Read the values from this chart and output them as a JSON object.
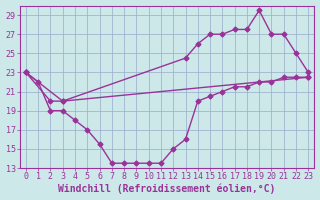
{
  "xlabel": "Windchill (Refroidissement éolien,°C)",
  "background_color": "#cce8e8",
  "line_color": "#993399",
  "grid_color": "#99aacc",
  "xlim": [
    -0.5,
    23.5
  ],
  "ylim": [
    13,
    30
  ],
  "yticks": [
    13,
    15,
    17,
    19,
    21,
    23,
    25,
    27,
    29
  ],
  "xticks": [
    0,
    1,
    2,
    3,
    4,
    5,
    6,
    7,
    8,
    9,
    10,
    11,
    12,
    13,
    14,
    15,
    16,
    17,
    18,
    19,
    20,
    21,
    22,
    23
  ],
  "line1_x": [
    0,
    1,
    2,
    3,
    4,
    5,
    6,
    7,
    8,
    9,
    10,
    11,
    12,
    13,
    14,
    15,
    16,
    17,
    18,
    19,
    20,
    21,
    22,
    23
  ],
  "line1_y": [
    23,
    22,
    19,
    19,
    18,
    17,
    15.5,
    13.5,
    13.5,
    13.5,
    13.5,
    13.5,
    15,
    16,
    20,
    20.5,
    21,
    21.5,
    21.5,
    22,
    22,
    22.5,
    22.5,
    22.5
  ],
  "line2_x": [
    0,
    2,
    3,
    13,
    14,
    15,
    16,
    17,
    18,
    19,
    20,
    21,
    22,
    23
  ],
  "line2_y": [
    23,
    20,
    20,
    24.5,
    26,
    27,
    27,
    27.5,
    27.5,
    29.5,
    27,
    27,
    25,
    23
  ],
  "line3_x": [
    0,
    3,
    23
  ],
  "line3_y": [
    23,
    20,
    22.5
  ],
  "marker": "D",
  "marker_size": 2.5,
  "linewidth": 1.0,
  "fontsize_ticks": 6,
  "fontsize_xlabel": 7
}
